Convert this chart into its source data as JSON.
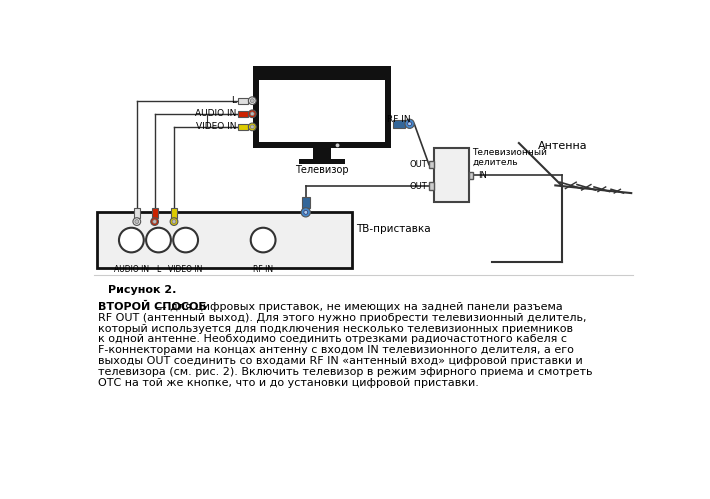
{
  "bg_color": "#ffffff",
  "figure_label": "Рисунок 2.",
  "bold_start": "ВТОРОЙ СПОСОБ",
  "dash": " — ",
  "body_lines": [
    "для цифровых приставок, не имеющих на задней панели разъема",
    "RF OUT (антенный выход). Для этого нужно приобрести телевизионный делитель,",
    "который используется для подключения несколько телевизионных приемников",
    "к одной антенне. Необходимо соединить отрезками радиочастотного кабеля с",
    "F-коннекторами на концах антенну с входом IN телевизионного делителя, а его",
    "выходы OUT соединить со входами RF IN «антенный вход» цифровой приставки и",
    "телевизора (см. рис. 2). Включить телевизор в режим эфирного приема и смотреть",
    "ОТС на той же кнопке, что и до установки цифровой приставки."
  ],
  "wire_color": "#333333",
  "connector_white": "#e0e0e0",
  "connector_red": "#cc2200",
  "connector_yellow": "#ddcc00",
  "connector_blue": "#4488cc",
  "connector_blue_body": "#336699",
  "label_color": "#000000",
  "tv_border": "#111111",
  "tv_screen": "#ffffff",
  "box_border": "#111111",
  "box_bg": "#f0f0f0",
  "splitter_border": "#444444",
  "splitter_bg": "#f0f0f0",
  "ant_color": "#333333"
}
